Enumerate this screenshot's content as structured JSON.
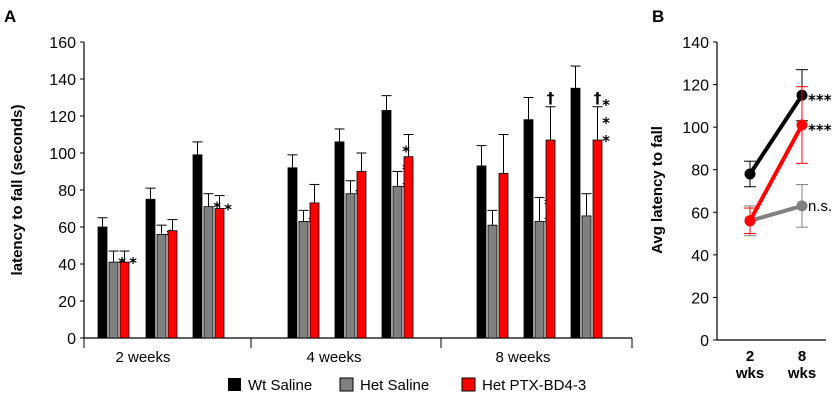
{
  "colors": {
    "wt": "#000000",
    "het": "#808080",
    "ptx": "#ff0000"
  },
  "chart_data": [
    {
      "panel": "A",
      "type": "bar",
      "ylabel": "latency to fall (seconds)",
      "ylim": [
        0,
        160
      ],
      "yticks": [
        "0",
        "20",
        "40",
        "60",
        "80",
        "100",
        "120",
        "140",
        "160"
      ],
      "groups": [
        "2 weeks",
        "4 weeks",
        "8 weeks"
      ],
      "legend": [
        "Wt Saline",
        "Het Saline",
        "Het PTX-BD4-3"
      ],
      "clusters": [
        {
          "group": 0,
          "bars": [
            {
              "v": 60,
              "e": 5,
              "m": ""
            },
            {
              "v": 41,
              "e": 6,
              "m": "*"
            },
            {
              "v": 41,
              "e": 6,
              "m": "*"
            }
          ]
        },
        {
          "group": 0,
          "bars": [
            {
              "v": 75,
              "e": 6,
              "m": ""
            },
            {
              "v": 56,
              "e": 5,
              "m": "*"
            },
            {
              "v": 58,
              "e": 6,
              "m": ""
            }
          ]
        },
        {
          "group": 0,
          "bars": [
            {
              "v": 99,
              "e": 7,
              "m": ""
            },
            {
              "v": 71,
              "e": 7,
              "m": "*"
            },
            {
              "v": 70,
              "e": 7,
              "m": "*"
            }
          ]
        },
        {
          "group": 1,
          "bars": [
            {
              "v": 92,
              "e": 7,
              "m": ""
            },
            {
              "v": 63,
              "e": 6,
              "m": "*"
            },
            {
              "v": 73,
              "e": 10,
              "m": ""
            }
          ]
        },
        {
          "group": 1,
          "bars": [
            {
              "v": 106,
              "e": 7,
              "m": ""
            },
            {
              "v": 78,
              "e": 7,
              "m": "*"
            },
            {
              "v": 90,
              "e": 10,
              "m": ""
            }
          ]
        },
        {
          "group": 1,
          "bars": [
            {
              "v": 123,
              "e": 8,
              "m": ""
            },
            {
              "v": 82,
              "e": 8,
              "m": "* * *"
            },
            {
              "v": 98,
              "e": 12,
              "m": ""
            }
          ]
        },
        {
          "group": 2,
          "bars": [
            {
              "v": 93,
              "e": 11,
              "m": ""
            },
            {
              "v": 61,
              "e": 8,
              "m": ""
            },
            {
              "v": 89,
              "e": 21,
              "m": ""
            }
          ]
        },
        {
          "group": 2,
          "bars": [
            {
              "v": 118,
              "e": 12,
              "m": ""
            },
            {
              "v": 63,
              "e": 13,
              "m": "* *"
            },
            {
              "v": 107,
              "e": 18,
              "m": "†"
            }
          ]
        },
        {
          "group": 2,
          "bars": [
            {
              "v": 135,
              "e": 12,
              "m": ""
            },
            {
              "v": 66,
              "e": 12,
              "m": ""
            },
            {
              "v": 107,
              "e": 18,
              "m": "† * * *"
            }
          ]
        }
      ]
    },
    {
      "panel": "B",
      "type": "line",
      "ylabel": "Avg latency to fall",
      "ylim": [
        0,
        140
      ],
      "yticks": [
        "0",
        "20",
        "40",
        "60",
        "80",
        "100",
        "120",
        "140"
      ],
      "x": [
        "2 wks",
        "8 wks"
      ],
      "series": [
        {
          "color": "#000000",
          "values": [
            78,
            115
          ],
          "err": [
            6,
            12
          ],
          "label": "***"
        },
        {
          "color": "#808080",
          "values": [
            56,
            63
          ],
          "err": [
            7,
            10
          ],
          "label": "n.s."
        },
        {
          "color": "#ff0000",
          "values": [
            56,
            101
          ],
          "err": [
            6,
            18
          ],
          "label": "***"
        }
      ]
    }
  ]
}
